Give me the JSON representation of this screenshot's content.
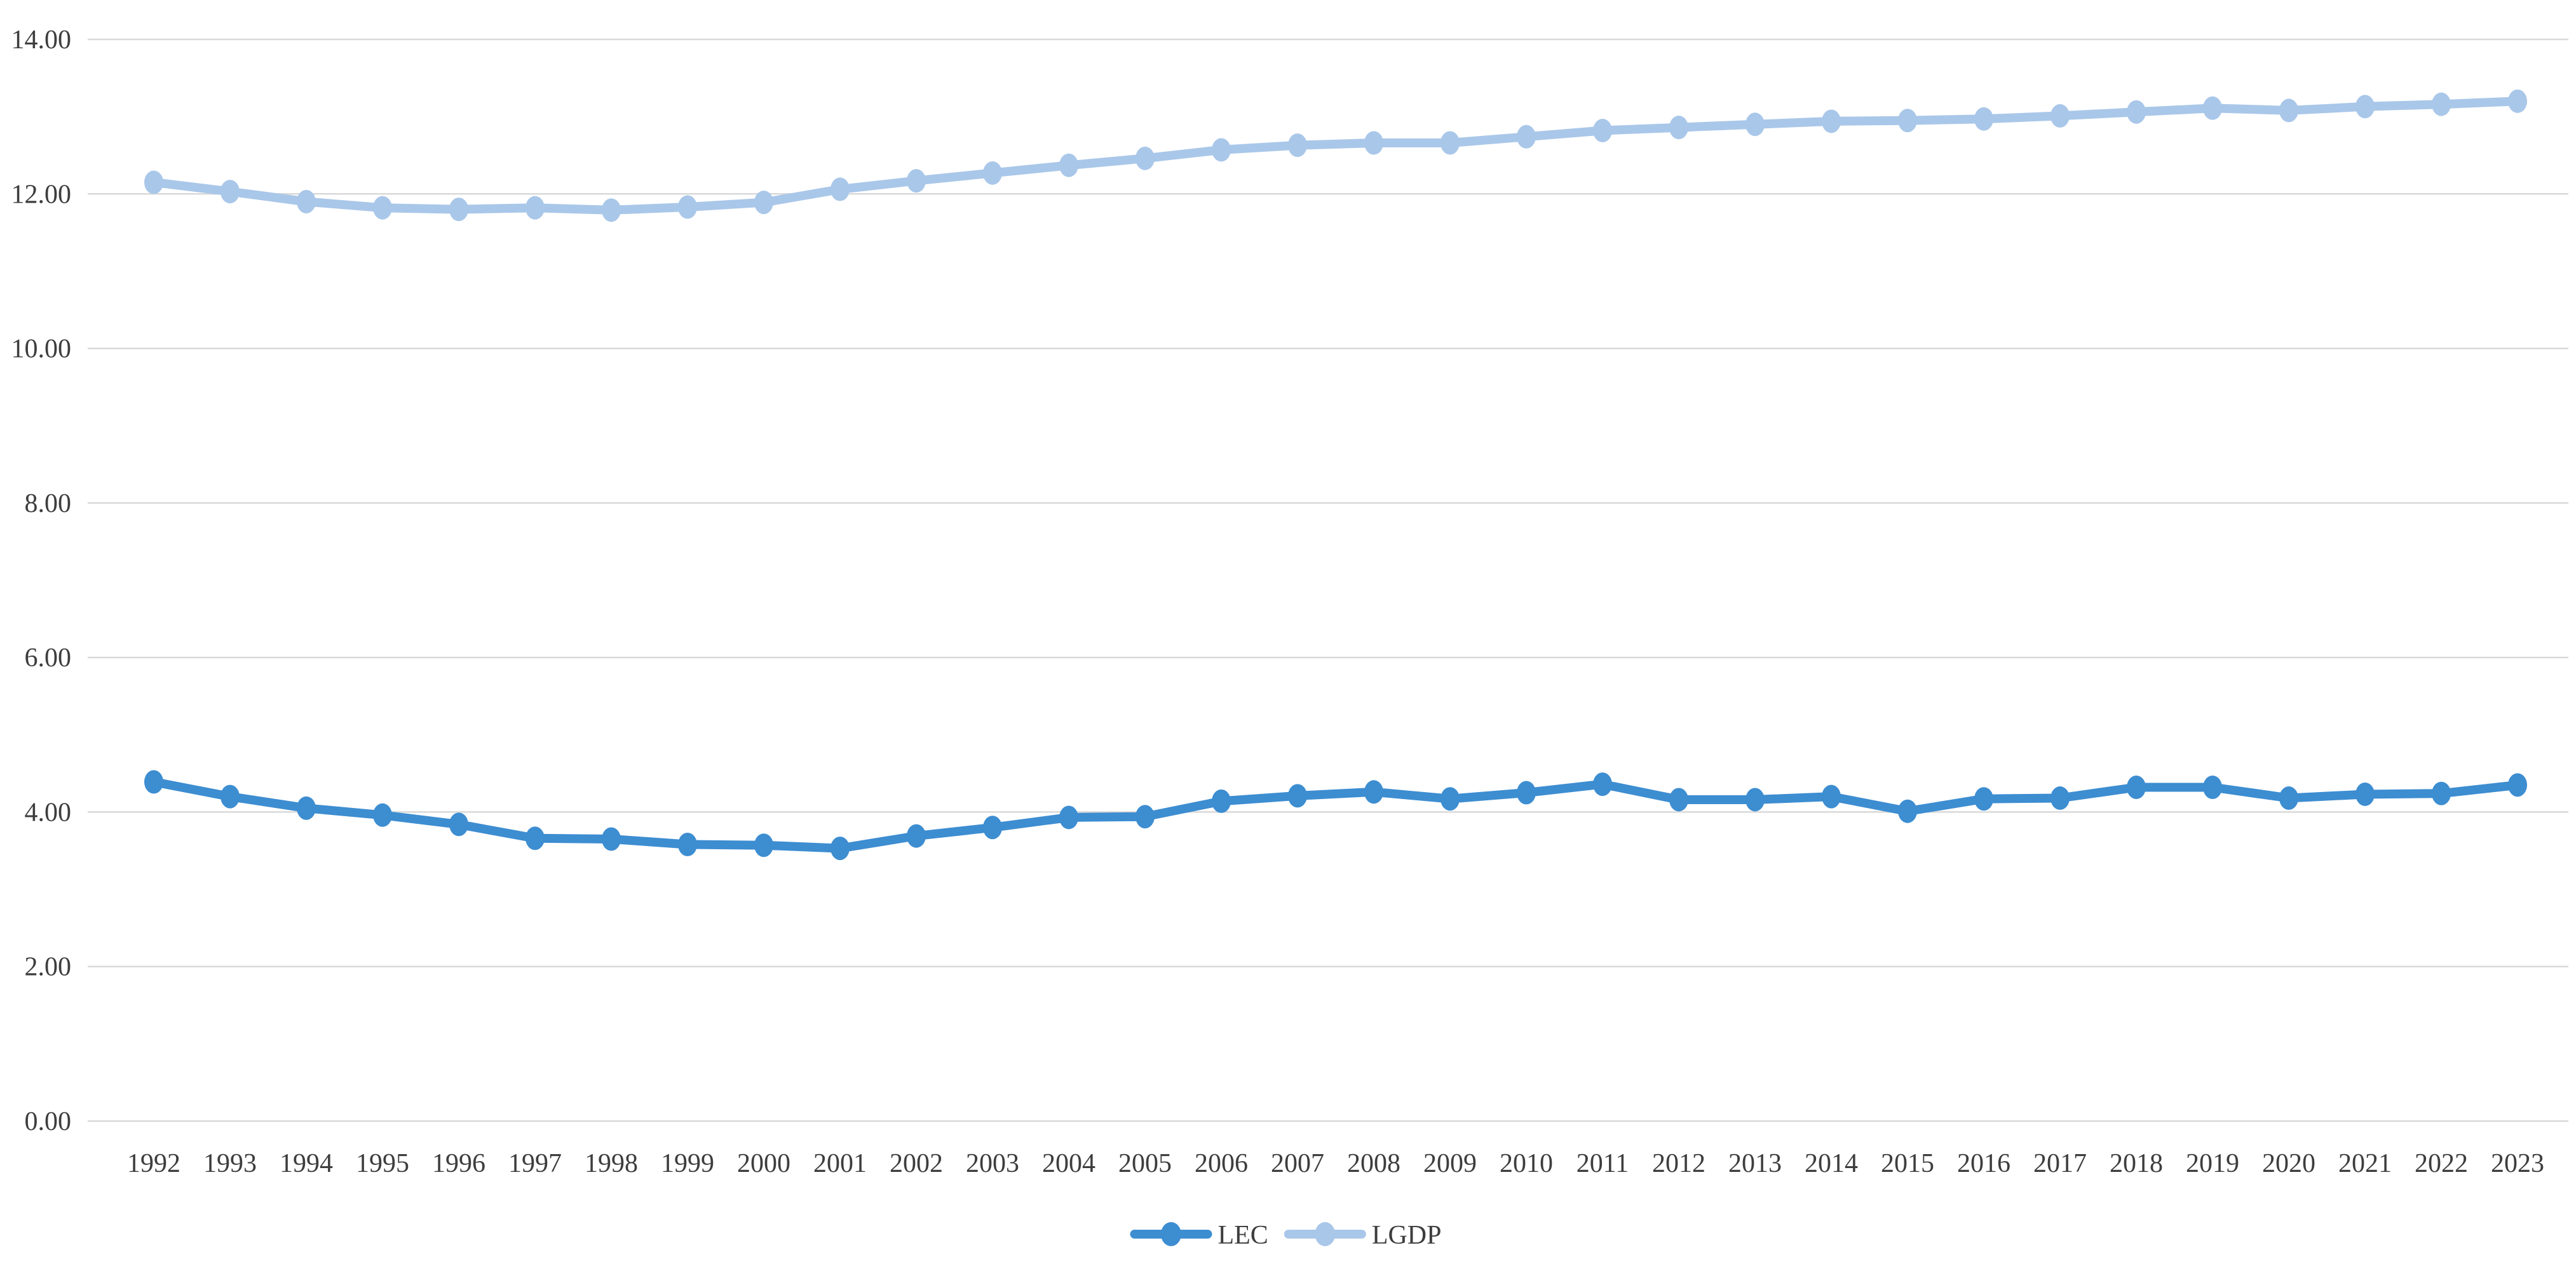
{
  "chart_data": {
    "type": "line",
    "title": "",
    "xlabel": "",
    "ylabel": "",
    "grid": true,
    "legend_position": "bottom-center",
    "ylim": [
      0,
      14
    ],
    "yticks": [
      {
        "value": 0,
        "label": "0.00"
      },
      {
        "value": 2,
        "label": "2.00"
      },
      {
        "value": 4,
        "label": "4.00"
      },
      {
        "value": 6,
        "label": "6.00"
      },
      {
        "value": 8,
        "label": "8.00"
      },
      {
        "value": 10,
        "label": "10.00"
      },
      {
        "value": 12,
        "label": "12.00"
      },
      {
        "value": 14,
        "label": "14.00"
      }
    ],
    "categories": [
      "1992",
      "1993",
      "1994",
      "1995",
      "1996",
      "1997",
      "1998",
      "1999",
      "2000",
      "2001",
      "2002",
      "2003",
      "2004",
      "2005",
      "2006",
      "2007",
      "2008",
      "2009",
      "2010",
      "2011",
      "2012",
      "2013",
      "2014",
      "2015",
      "2016",
      "2017",
      "2018",
      "2019",
      "2020",
      "2021",
      "2022",
      "2023"
    ],
    "series": [
      {
        "name": "LEC",
        "color": "#3d8dd1",
        "values": [
          4.39,
          4.2,
          4.05,
          3.96,
          3.84,
          3.66,
          3.65,
          3.58,
          3.57,
          3.53,
          3.69,
          3.8,
          3.93,
          3.94,
          4.14,
          4.21,
          4.26,
          4.17,
          4.25,
          4.36,
          4.16,
          4.16,
          4.2,
          4.01,
          4.17,
          4.18,
          4.32,
          4.32,
          4.18,
          4.23,
          4.24,
          4.35
        ]
      },
      {
        "name": "LGDP",
        "color": "#a9c7e9",
        "values": [
          12.15,
          12.03,
          11.9,
          11.82,
          11.8,
          11.82,
          11.79,
          11.83,
          11.89,
          12.06,
          12.17,
          12.27,
          12.37,
          12.46,
          12.57,
          12.63,
          12.66,
          12.66,
          12.74,
          12.82,
          12.86,
          12.9,
          12.94,
          12.95,
          12.97,
          13.01,
          13.06,
          13.11,
          13.08,
          13.13,
          13.16,
          13.2
        ]
      }
    ]
  },
  "style": {
    "gridline_color": "#d9d9d9",
    "text_color": "#3d3d3d",
    "background_color": "#ffffff"
  }
}
